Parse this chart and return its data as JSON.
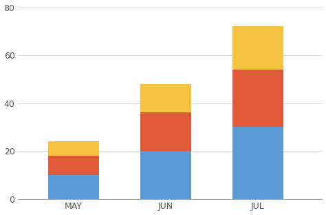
{
  "categories": [
    "MAY",
    "JUN",
    "JUL"
  ],
  "series": {
    "blue": [
      10,
      20,
      30
    ],
    "red": [
      8,
      16,
      24
    ],
    "yellow": [
      6,
      12,
      18
    ]
  },
  "colors": {
    "blue": "#5B9BD5",
    "red": "#E05A3A",
    "yellow": "#F5C242"
  },
  "ylim": [
    0,
    80
  ],
  "yticks": [
    0,
    20,
    40,
    60,
    80
  ],
  "background_color": "#FFFFFF",
  "plot_bg_color": "#FFFFFF",
  "bar_width": 0.55,
  "tick_label_fontsize": 9,
  "tick_label_color": "#555555",
  "grid_color": "#DDDDDD"
}
